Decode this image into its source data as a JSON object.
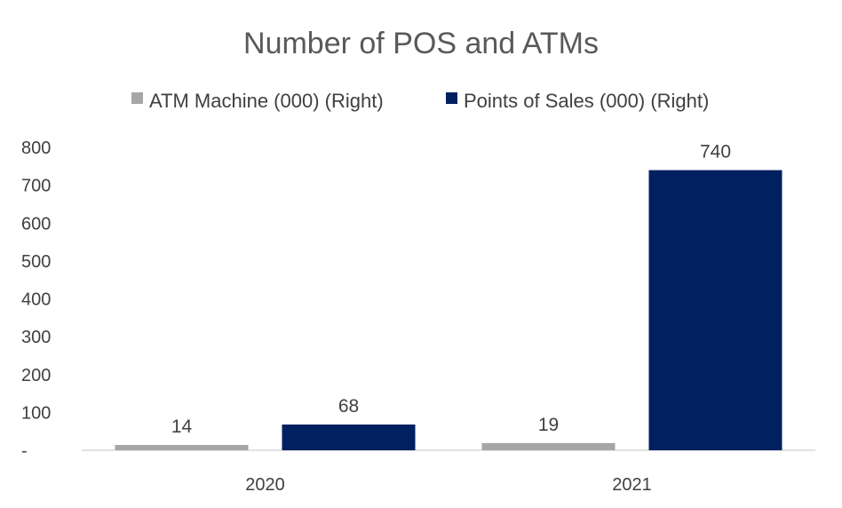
{
  "chart_data": {
    "type": "bar",
    "title": "Number of POS and ATMs",
    "categories": [
      "2020",
      "2021"
    ],
    "series": [
      {
        "name": "ATM Machine (000) (Right)",
        "values": [
          14,
          19
        ],
        "color": "#a6a6a6"
      },
      {
        "name": "Points of Sales (000) (Right)",
        "values": [
          68,
          740
        ],
        "color": "#002060"
      }
    ],
    "ylim": [
      0,
      800
    ],
    "yticks": [
      "-",
      "100",
      "200",
      "300",
      "400",
      "500",
      "600",
      "700",
      "800"
    ],
    "xlabel": "",
    "ylabel": "",
    "legend": "top",
    "grid": false
  }
}
